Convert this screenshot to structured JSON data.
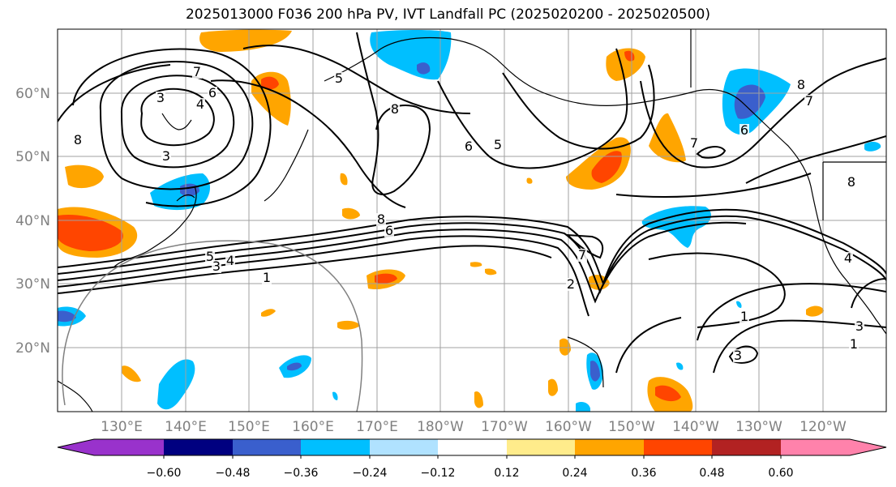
{
  "title": "2025013000 F036 200 hPa PV, IVT Landfall PC (2025020200 - 2025020500)",
  "map": {
    "lon_labels": [
      "130°E",
      "140°E",
      "150°E",
      "160°E",
      "170°E",
      "180°W",
      "170°W",
      "160°W",
      "150°W",
      "140°W",
      "130°W",
      "120°W"
    ],
    "lat_labels": [
      "20°N",
      "30°N",
      "40°N",
      "50°N",
      "60°N"
    ]
  },
  "colorbar": {
    "colors": [
      "#9932cc",
      "#000080",
      "#3a5fcd",
      "#00bfff",
      "#b0e2ff",
      "#ffffff",
      "#ffec8b",
      "#ffa500",
      "#ff4500",
      "#b22222",
      "#ff82ab"
    ],
    "tick_labels": [
      "−0.60",
      "−0.48",
      "−0.36",
      "−0.24",
      "−0.12",
      "0.12",
      "0.24",
      "0.36",
      "0.48",
      "0.60"
    ]
  },
  "contour_labels": [
    "7",
    "6",
    "3",
    "4",
    "3",
    "8",
    "5",
    "8",
    "6",
    "5",
    "6",
    "8",
    "5",
    "4",
    "3",
    "1",
    "8",
    "6",
    "7",
    "2",
    "7",
    "7",
    "8",
    "1",
    "3",
    "1",
    "3",
    "4"
  ]
}
